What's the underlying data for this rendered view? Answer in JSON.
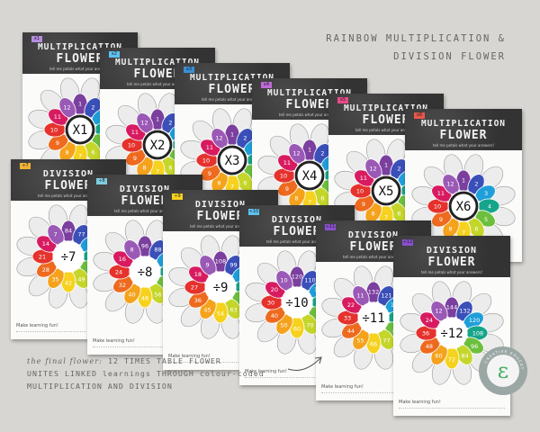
{
  "heading": {
    "line1": "RAINBOW MULTIPLICATION &",
    "line2": "DIVISION FLOWER"
  },
  "caption": {
    "lead": "the final flower:",
    "line1_rest": " 12 TIMES TABLE FLOWER",
    "line2": "UNITES LINKED learnings THROUGH colour-coded",
    "line3": "MULTIPLICATION AND DIVISION"
  },
  "sheet_text": {
    "multiplication": "MULTIPLICATION",
    "division": "DIVISION",
    "flower": "FLOWER",
    "subtitle": "tell me petals what your answers!",
    "footer": "Make learning fun!"
  },
  "colors": {
    "petals": [
      "#7b3f9e",
      "#3a4fb8",
      "#1e9fd9",
      "#16a58a",
      "#6cbf3c",
      "#c5d62b",
      "#f6d21f",
      "#f5a21c",
      "#ee6a1f",
      "#e5322d",
      "#d81b60",
      "#9b59b6"
    ],
    "outer_petal": "#ececec",
    "center": "#ffffff",
    "board": "#3b3b3b",
    "background": "#d8d6d2"
  },
  "sheets": [
    {
      "kind": "multiplication",
      "tag": "x1",
      "tag_color": "#b48ee0",
      "center": "X1",
      "numbers": [
        "1",
        "2",
        "3",
        "4",
        "5",
        "6",
        "7",
        "8",
        "9",
        "10",
        "11",
        "12"
      ]
    },
    {
      "kind": "multiplication",
      "tag": "x2",
      "tag_color": "#5cc1f0",
      "center": "X2",
      "numbers": [
        "1",
        "2",
        "3",
        "4",
        "5",
        "6",
        "7",
        "8",
        "9",
        "10",
        "11",
        "12"
      ]
    },
    {
      "kind": "multiplication",
      "tag": "x3",
      "tag_color": "#3a8fd6",
      "center": "X3",
      "numbers": [
        "1",
        "2",
        "3",
        "4",
        "5",
        "6",
        "7",
        "8",
        "9",
        "10",
        "11",
        "12"
      ]
    },
    {
      "kind": "multiplication",
      "tag": "x4",
      "tag_color": "#c06ad8",
      "center": "X4",
      "numbers": [
        "1",
        "2",
        "3",
        "4",
        "5",
        "6",
        "7",
        "8",
        "9",
        "10",
        "11",
        "12"
      ]
    },
    {
      "kind": "multiplication",
      "tag": "x5",
      "tag_color": "#e84b8a",
      "center": "X5",
      "numbers": [
        "1",
        "2",
        "3",
        "4",
        "5",
        "6",
        "7",
        "8",
        "9",
        "10",
        "11",
        "12"
      ]
    },
    {
      "kind": "multiplication",
      "tag": "x6",
      "tag_color": "#e8574a",
      "center": "X6",
      "numbers": [
        "1",
        "2",
        "3",
        "4",
        "5",
        "6",
        "7",
        "8",
        "9",
        "10",
        "11",
        "12"
      ]
    },
    {
      "kind": "division",
      "tag": "÷7",
      "tag_color": "#f2b233",
      "center": "÷7",
      "numbers": [
        "84",
        "77",
        "70",
        "63",
        "56",
        "49",
        "42",
        "35",
        "28",
        "21",
        "14",
        "7"
      ]
    },
    {
      "kind": "division",
      "tag": "÷8",
      "tag_color": "#7fcde0",
      "center": "÷8",
      "numbers": [
        "96",
        "88",
        "80",
        "72",
        "64",
        "56",
        "48",
        "40",
        "32",
        "24",
        "16",
        "8"
      ]
    },
    {
      "kind": "division",
      "tag": "÷9",
      "tag_color": "#f6d21f",
      "center": "÷9",
      "numbers": [
        "108",
        "99",
        "90",
        "81",
        "72",
        "63",
        "54",
        "45",
        "36",
        "27",
        "18",
        "9"
      ]
    },
    {
      "kind": "division",
      "tag": "÷10",
      "tag_color": "#5cc1f0",
      "center": "÷10",
      "numbers": [
        "120",
        "110",
        "100",
        "90",
        "80",
        "70",
        "60",
        "50",
        "40",
        "30",
        "20",
        "10"
      ]
    },
    {
      "kind": "division",
      "tag": "÷11",
      "tag_color": "#8a4fd0",
      "center": "÷11",
      "numbers": [
        "132",
        "121",
        "110",
        "99",
        "88",
        "77",
        "66",
        "55",
        "44",
        "33",
        "22",
        "11"
      ]
    },
    {
      "kind": "division",
      "tag": "÷12",
      "tag_color": "#8a4fd0",
      "center": "÷12",
      "numbers": [
        "144",
        "132",
        "120",
        "108",
        "96",
        "84",
        "72",
        "60",
        "48",
        "36",
        "24",
        "12"
      ]
    }
  ],
  "logo": {
    "letter": "ε",
    "ring_text": "CREATIVE EDUCATION"
  }
}
